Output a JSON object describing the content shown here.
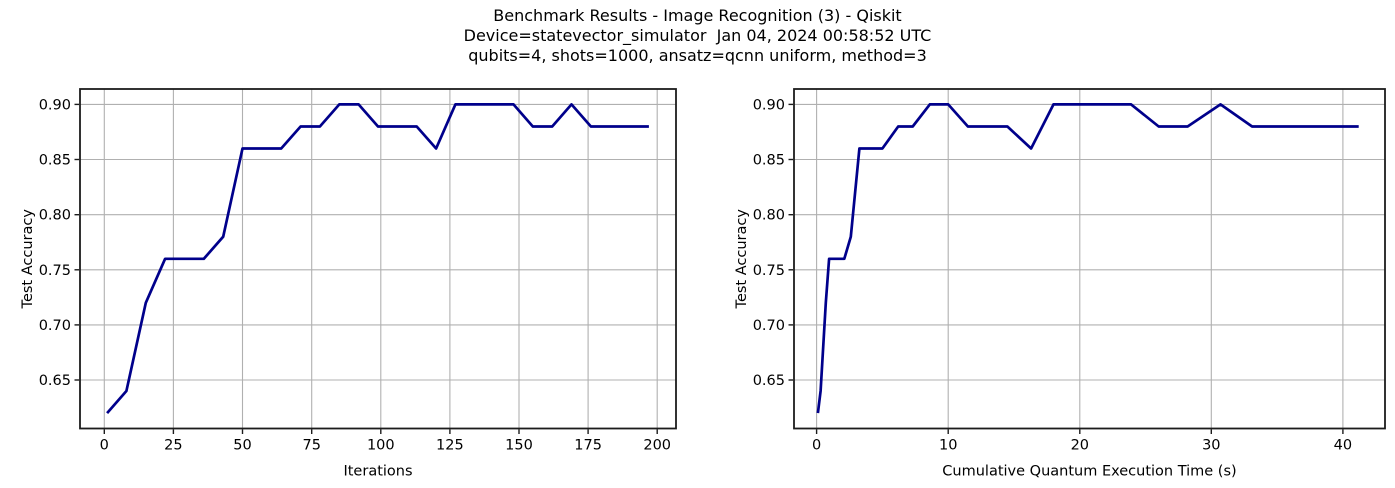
{
  "title": {
    "line1": "Benchmark Results - Image Recognition (3) - Qiskit",
    "line2": "Device=statevector_simulator  Jan 04, 2024 00:58:52 UTC",
    "line3": "qubits=4, shots=1000, ansatz=qcnn uniform, method=3"
  },
  "colors": {
    "line": "#00008b",
    "grid": "#b0b0b0",
    "spine": "#1c1c1c",
    "text": "#000000",
    "background": "#ffffff"
  },
  "chart_data": [
    {
      "type": "line",
      "name": "accuracy-vs-iterations",
      "xlabel": "Iterations",
      "ylabel": "Test Accuracy",
      "grid": true,
      "legend": null,
      "xlim": [
        -8.8,
        206.8
      ],
      "ylim": [
        0.606,
        0.914
      ],
      "xticks": {
        "values": [
          0,
          25,
          50,
          75,
          100,
          125,
          150,
          175,
          200
        ],
        "labels": [
          "0",
          "25",
          "50",
          "75",
          "100",
          "125",
          "150",
          "175",
          "200"
        ]
      },
      "yticks": {
        "values": [
          0.65,
          0.7,
          0.75,
          0.8,
          0.85,
          0.9
        ],
        "labels": [
          "0.65",
          "0.70",
          "0.75",
          "0.80",
          "0.85",
          "0.90"
        ]
      },
      "x": [
        1,
        8,
        15,
        22,
        29,
        36,
        43,
        50,
        57,
        64,
        71,
        78,
        85,
        92,
        99,
        106,
        113,
        120,
        127,
        134,
        141,
        148,
        155,
        162,
        169,
        176,
        183,
        190,
        197
      ],
      "y": [
        0.62,
        0.64,
        0.72,
        0.76,
        0.76,
        0.76,
        0.78,
        0.86,
        0.86,
        0.86,
        0.88,
        0.88,
        0.9,
        0.9,
        0.88,
        0.88,
        0.88,
        0.86,
        0.9,
        0.9,
        0.9,
        0.9,
        0.88,
        0.88,
        0.9,
        0.88,
        0.88,
        0.88,
        0.88
      ]
    },
    {
      "type": "line",
      "name": "accuracy-vs-cumulative-time",
      "xlabel": "Cumulative Quantum Execution Time (s)",
      "ylabel": "Test Accuracy",
      "grid": true,
      "legend": null,
      "xlim": [
        -1.72,
        43.2
      ],
      "ylim": [
        0.606,
        0.914
      ],
      "xticks": {
        "values": [
          0,
          10,
          20,
          30,
          40
        ],
        "labels": [
          "0",
          "10",
          "20",
          "30",
          "40"
        ]
      },
      "yticks": {
        "values": [
          0.65,
          0.7,
          0.75,
          0.8,
          0.85,
          0.9
        ],
        "labels": [
          "0.65",
          "0.70",
          "0.75",
          "0.80",
          "0.85",
          "0.90"
        ]
      },
      "x": [
        0.1,
        0.3,
        0.7,
        0.95,
        1.5,
        2.1,
        2.6,
        3.25,
        4.1,
        5.0,
        6.2,
        7.3,
        8.6,
        10.0,
        11.5,
        13.0,
        14.5,
        16.3,
        18.0,
        19.9,
        21.9,
        23.9,
        26.0,
        28.2,
        30.7,
        33.1,
        35.8,
        38.4,
        41.2
      ],
      "y": [
        0.62,
        0.64,
        0.72,
        0.76,
        0.76,
        0.76,
        0.78,
        0.86,
        0.86,
        0.86,
        0.88,
        0.88,
        0.9,
        0.9,
        0.88,
        0.88,
        0.88,
        0.86,
        0.9,
        0.9,
        0.9,
        0.9,
        0.88,
        0.88,
        0.9,
        0.88,
        0.88,
        0.88,
        0.88
      ]
    }
  ]
}
